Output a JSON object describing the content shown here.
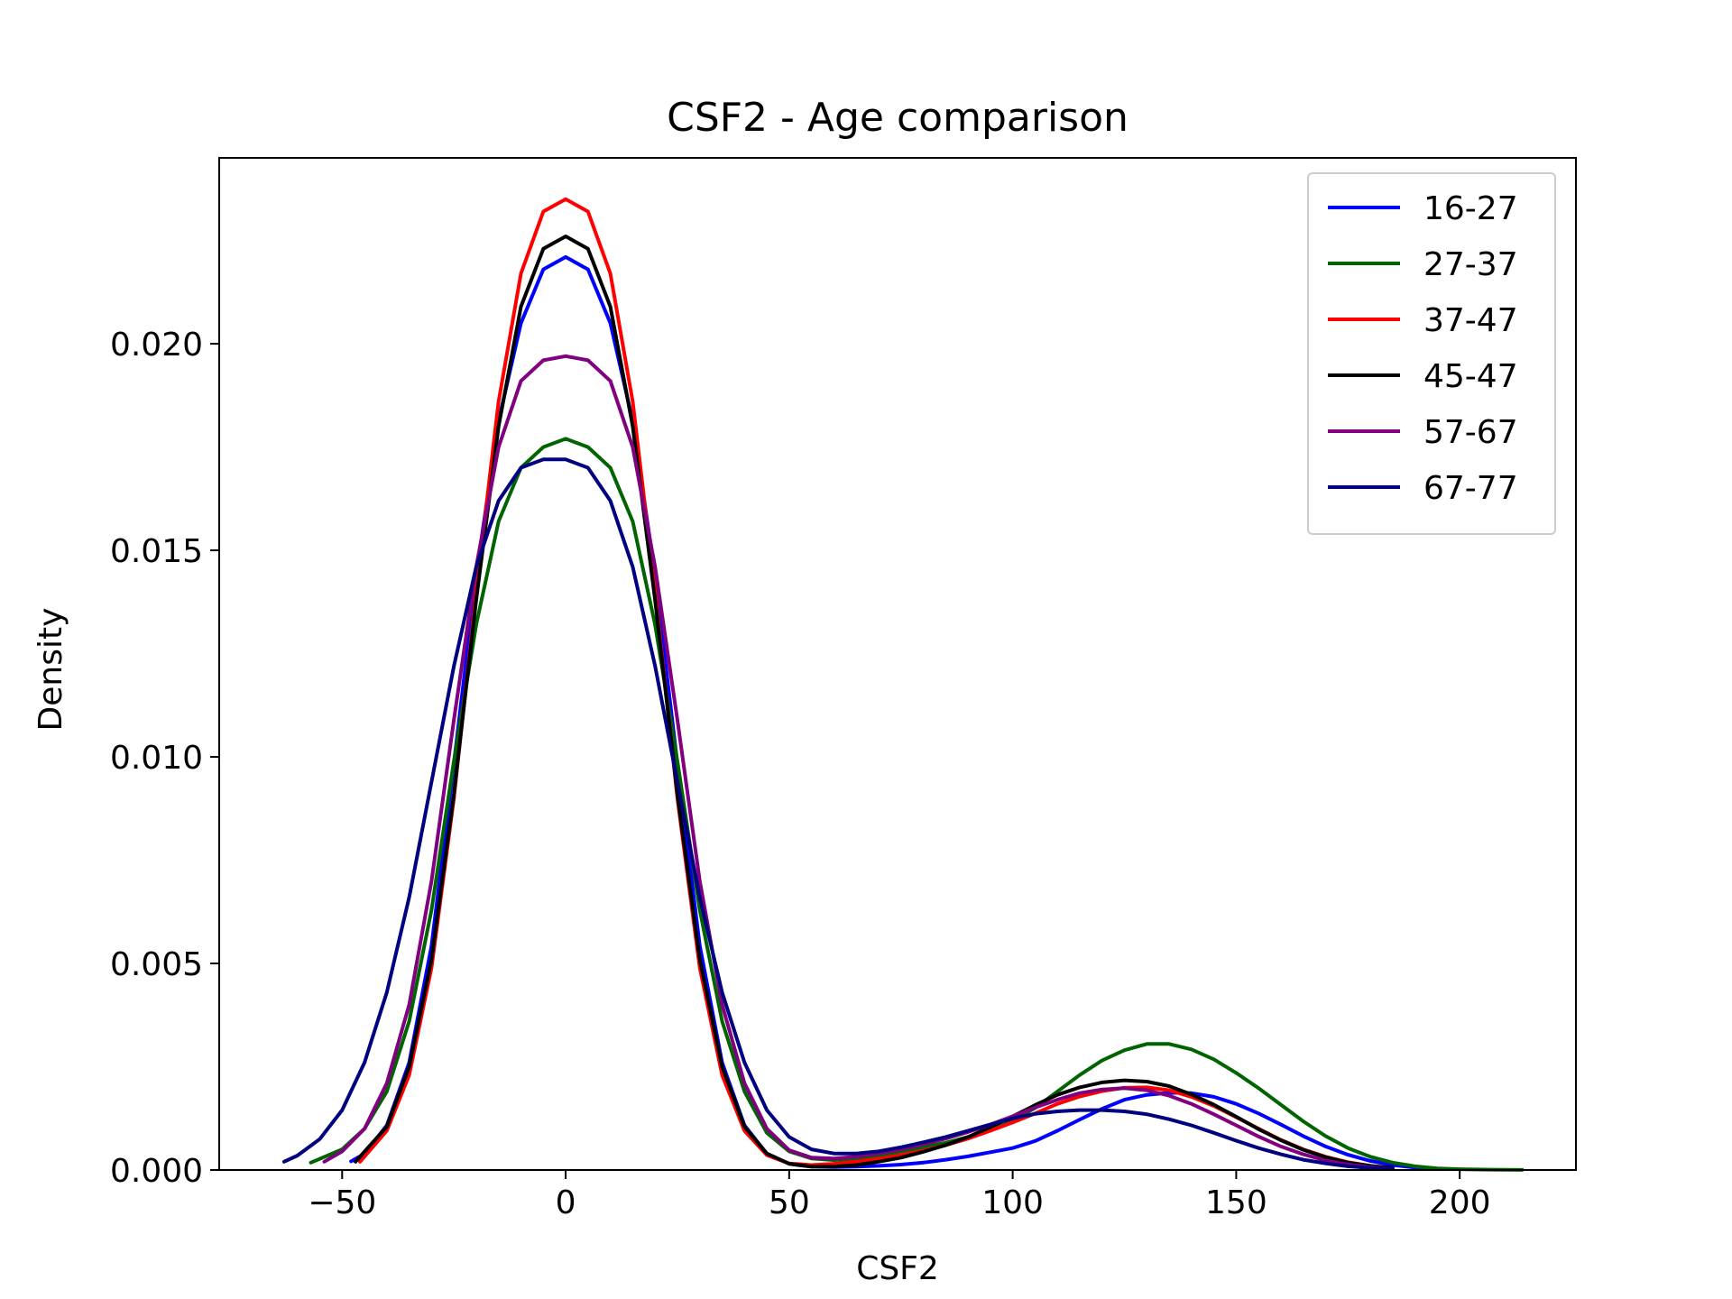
{
  "chart_data": {
    "type": "line",
    "title": "CSF2 - Age comparison",
    "xlabel": "CSF2",
    "ylabel": "Density",
    "xlim": [
      -77.5,
      226
    ],
    "ylim": [
      0,
      0.0245
    ],
    "xticks": [
      -50,
      0,
      50,
      100,
      150,
      200
    ],
    "xtick_labels": [
      "−50",
      "0",
      "50",
      "100",
      "150",
      "200"
    ],
    "yticks": [
      0,
      0.005,
      0.01,
      0.015,
      0.02
    ],
    "ytick_labels": [
      "0.000",
      "0.005",
      "0.010",
      "0.015",
      "0.020"
    ],
    "grid": false,
    "legend_position": "top-right",
    "series": [
      {
        "name": "16-27",
        "color": "#0000ff",
        "x": [
          -48,
          -45,
          -40,
          -35,
          -30,
          -25,
          -20,
          -15,
          -10,
          -5,
          0,
          5,
          10,
          15,
          20,
          25,
          30,
          35,
          40,
          45,
          50,
          55,
          60,
          65,
          70,
          75,
          80,
          85,
          90,
          95,
          100,
          105,
          110,
          115,
          120,
          125,
          130,
          135,
          140,
          145,
          150,
          155,
          160,
          165,
          170,
          175,
          180,
          185,
          190,
          195,
          199
        ],
        "y": [
          0.00021,
          0.00039,
          0.00108,
          0.0026,
          0.00543,
          0.00984,
          0.0144,
          0.01813,
          0.0205,
          0.0218,
          0.0221,
          0.0218,
          0.0205,
          0.01813,
          0.0144,
          0.00984,
          0.00543,
          0.0026,
          0.00108,
          0.00039,
          0.00015,
          8e-05,
          7e-05,
          8e-05,
          0.0001,
          0.00013,
          0.00018,
          0.00025,
          0.00033,
          0.00043,
          0.00053,
          0.0007,
          0.00095,
          0.00122,
          0.00148,
          0.0017,
          0.00182,
          0.00187,
          0.00186,
          0.00177,
          0.0016,
          0.00137,
          0.0011,
          0.00082,
          0.00057,
          0.00037,
          0.00022,
          0.00012,
          6e-05,
          3e-05,
          2e-05
        ]
      },
      {
        "name": "27-37",
        "color": "#006400",
        "x": [
          -57,
          -50,
          -45,
          -40,
          -35,
          -30,
          -25,
          -20,
          -15,
          -10,
          -5,
          0,
          5,
          10,
          15,
          20,
          25,
          30,
          35,
          40,
          45,
          50,
          55,
          60,
          65,
          70,
          75,
          80,
          85,
          90,
          95,
          100,
          105,
          110,
          115,
          120,
          125,
          130,
          135,
          140,
          145,
          150,
          155,
          160,
          165,
          170,
          175,
          180,
          185,
          190,
          195,
          200,
          205,
          210,
          214
        ],
        "y": [
          0.00018,
          0.0005,
          0.001,
          0.0019,
          0.0036,
          0.0063,
          0.0099,
          0.0132,
          0.0157,
          0.017,
          0.0175,
          0.0177,
          0.0175,
          0.017,
          0.0157,
          0.0132,
          0.0099,
          0.0063,
          0.0036,
          0.0019,
          0.0009,
          0.00045,
          0.00028,
          0.00024,
          0.00027,
          0.00035,
          0.00045,
          0.00055,
          0.00066,
          0.0008,
          0.00098,
          0.0012,
          0.0015,
          0.0019,
          0.0023,
          0.00265,
          0.0029,
          0.00305,
          0.00305,
          0.00292,
          0.00268,
          0.00235,
          0.00198,
          0.00158,
          0.00118,
          0.00082,
          0.00053,
          0.00032,
          0.00018,
          9e-05,
          4e-05,
          2e-05,
          1e-05,
          5e-06,
          3e-06
        ]
      },
      {
        "name": "37-47",
        "color": "#ff0000",
        "x": [
          -46,
          -40,
          -35,
          -30,
          -25,
          -20,
          -15,
          -10,
          -5,
          0,
          5,
          10,
          15,
          20,
          25,
          30,
          35,
          40,
          45,
          50,
          55,
          60,
          65,
          70,
          75,
          80,
          85,
          90,
          95,
          100,
          105,
          110,
          115,
          120,
          125,
          130,
          135,
          140,
          145,
          150,
          155,
          160,
          165,
          170,
          175,
          180,
          185
        ],
        "y": [
          0.0002,
          0.00095,
          0.0023,
          0.0049,
          0.009,
          0.014,
          0.0186,
          0.0217,
          0.0232,
          0.0235,
          0.0232,
          0.0217,
          0.0186,
          0.014,
          0.009,
          0.0049,
          0.0023,
          0.00095,
          0.00036,
          0.00016,
          0.00012,
          0.00015,
          0.0002,
          0.00027,
          0.00036,
          0.00047,
          0.0006,
          0.00076,
          0.00095,
          0.00115,
          0.00137,
          0.0016,
          0.00178,
          0.00191,
          0.00199,
          0.002,
          0.00193,
          0.00177,
          0.00155,
          0.00128,
          0.001,
          0.00073,
          0.0005,
          0.00032,
          0.00019,
          0.0001,
          5e-05
        ]
      },
      {
        "name": "45-47",
        "color": "#000000",
        "x": [
          -47,
          -40,
          -35,
          -30,
          -25,
          -20,
          -15,
          -10,
          -5,
          0,
          5,
          10,
          15,
          20,
          25,
          30,
          35,
          40,
          45,
          50,
          55,
          60,
          65,
          70,
          75,
          80,
          85,
          90,
          95,
          100,
          105,
          110,
          115,
          120,
          125,
          130,
          135,
          140,
          145,
          150,
          155,
          160,
          165,
          170,
          175,
          180,
          185
        ],
        "y": [
          0.0002,
          0.00105,
          0.0025,
          0.0051,
          0.0091,
          0.0138,
          0.018,
          0.0209,
          0.0223,
          0.0226,
          0.0223,
          0.0209,
          0.018,
          0.0138,
          0.0091,
          0.0051,
          0.0025,
          0.00105,
          0.0004,
          0.00015,
          8e-05,
          8e-05,
          0.00012,
          0.0002,
          0.0003,
          0.00044,
          0.0006,
          0.0008,
          0.00104,
          0.0013,
          0.00157,
          0.00182,
          0.002,
          0.00212,
          0.00217,
          0.00214,
          0.00203,
          0.00183,
          0.00158,
          0.00129,
          0.00099,
          0.00072,
          0.00049,
          0.00031,
          0.00018,
          0.0001,
          5e-05
        ]
      },
      {
        "name": "57-67",
        "color": "#800080",
        "x": [
          -54,
          -50,
          -45,
          -40,
          -35,
          -30,
          -25,
          -20,
          -15,
          -10,
          -5,
          0,
          5,
          10,
          15,
          20,
          25,
          30,
          35,
          40,
          45,
          50,
          55,
          60,
          65,
          70,
          75,
          80,
          85,
          90,
          95,
          100,
          105,
          110,
          115,
          120,
          125,
          130,
          135,
          140,
          145,
          150,
          155,
          160,
          165,
          170,
          175,
          180,
          185
        ],
        "y": [
          0.0002,
          0.00045,
          0.001,
          0.0021,
          0.004,
          0.007,
          0.0109,
          0.0146,
          0.0175,
          0.0191,
          0.0196,
          0.0197,
          0.0196,
          0.0191,
          0.0175,
          0.0146,
          0.0109,
          0.007,
          0.004,
          0.0021,
          0.001,
          0.00048,
          0.0003,
          0.00028,
          0.00032,
          0.0004,
          0.0005,
          0.00062,
          0.00076,
          0.00092,
          0.0011,
          0.0013,
          0.00151,
          0.0017,
          0.00186,
          0.00195,
          0.00198,
          0.00193,
          0.0018,
          0.0016,
          0.00135,
          0.00108,
          0.00081,
          0.00057,
          0.00038,
          0.00023,
          0.00013,
          7e-05,
          3e-05
        ]
      },
      {
        "name": "67-77",
        "color": "#000080",
        "x": [
          -63,
          -60,
          -55,
          -50,
          -45,
          -40,
          -35,
          -30,
          -25,
          -20,
          -15,
          -10,
          -5,
          0,
          5,
          10,
          15,
          20,
          25,
          30,
          35,
          40,
          45,
          50,
          55,
          60,
          65,
          70,
          75,
          80,
          85,
          90,
          95,
          100,
          105,
          110,
          115,
          120,
          125,
          130,
          135,
          140,
          145,
          150,
          155,
          160,
          165,
          170,
          175,
          180,
          185
        ],
        "y": [
          0.0002,
          0.00035,
          0.00075,
          0.00145,
          0.0026,
          0.0043,
          0.0066,
          0.0094,
          0.0122,
          0.0146,
          0.0162,
          0.017,
          0.0172,
          0.0172,
          0.017,
          0.0162,
          0.0146,
          0.0122,
          0.0094,
          0.0066,
          0.0043,
          0.0026,
          0.00145,
          0.0008,
          0.0005,
          0.0004,
          0.0004,
          0.00045,
          0.00055,
          0.00067,
          0.0008,
          0.00095,
          0.0011,
          0.00125,
          0.00136,
          0.00142,
          0.00145,
          0.00145,
          0.00142,
          0.00135,
          0.00123,
          0.00108,
          0.0009,
          0.00071,
          0.00053,
          0.00038,
          0.00025,
          0.00016,
          9e-05,
          5e-05,
          3e-05
        ]
      }
    ]
  }
}
